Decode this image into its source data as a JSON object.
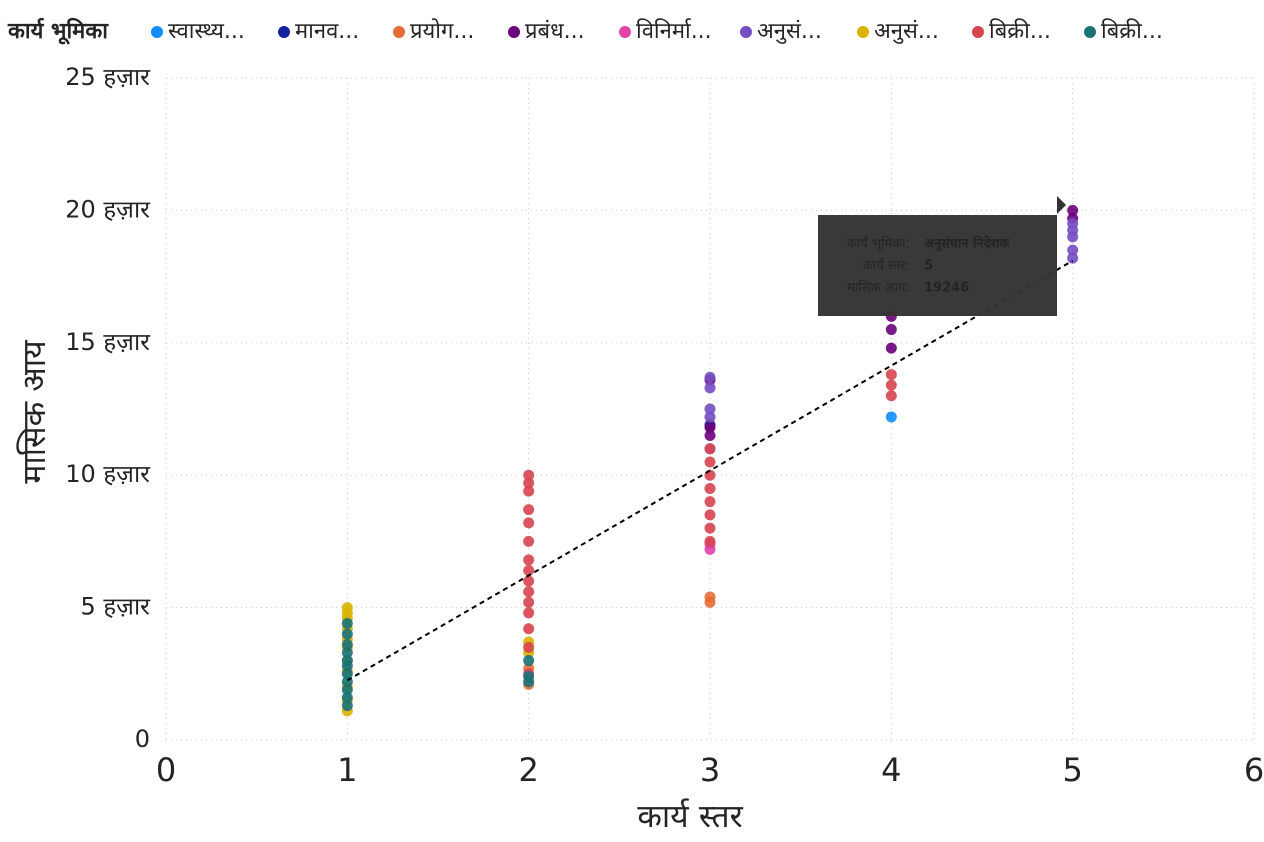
{
  "chart_data": {
    "type": "scatter",
    "legend_title": "कार्य भूमिका",
    "x_label": "कार्य स्तर",
    "y_label": "मासिक आय",
    "xlim": [
      0,
      6
    ],
    "xticks": [
      0,
      1,
      2,
      3,
      4,
      5,
      6
    ],
    "ylim": [
      0,
      25000
    ],
    "yticks": [
      0,
      {
        "value": 5000,
        "label": "5 हज़ार"
      },
      {
        "value": 10000,
        "label": "10 हज़ार"
      },
      {
        "value": 15000,
        "label": "15 हज़ार"
      },
      {
        "value": 20000,
        "label": "20 हज़ार"
      },
      {
        "value": 25000,
        "label": "25 हज़ार"
      }
    ],
    "grid": true,
    "legend_position": "top",
    "series": [
      {
        "name": "स्वास्थ्य...",
        "color": "#118dff",
        "x": [
          4
        ],
        "values": [
          12200
        ]
      },
      {
        "name": "मानव...",
        "color": "#12239e",
        "x": [
          3
        ],
        "values": [
          11900
        ]
      },
      {
        "name": "प्रयोग...",
        "color": "#e66c37",
        "x": [
          2,
          2,
          3,
          3
        ],
        "values": [
          2100,
          2700,
          5200,
          5400
        ]
      },
      {
        "name": "प्रबंध...",
        "color": "#6b007b",
        "x": [
          3,
          3,
          3,
          4,
          4,
          4,
          5,
          5
        ],
        "values": [
          11500,
          11800,
          13600,
          14800,
          15500,
          16000,
          19700,
          20000
        ]
      },
      {
        "name": "विनिर्मा...",
        "color": "#e044a7",
        "x": [
          3,
          3
        ],
        "values": [
          7200,
          7400
        ]
      },
      {
        "name": "अनुसं...",
        "color": "#744ec2",
        "x": [
          3,
          3,
          3,
          3,
          3,
          5,
          5,
          5,
          5,
          5
        ],
        "values": [
          11000,
          12200,
          12500,
          13300,
          13700,
          18200,
          18500,
          19000,
          19246,
          19500
        ]
      },
      {
        "name": "अनुसं...",
        "color": "#d9b300",
        "x": [
          1,
          1,
          1,
          1,
          1,
          1,
          1,
          1,
          1,
          1,
          1,
          2,
          2
        ],
        "values": [
          1100,
          1500,
          2000,
          2600,
          3000,
          3500,
          3800,
          4200,
          4600,
          4800,
          5000,
          3300,
          3700
        ]
      },
      {
        "name": "बिक्री...",
        "color": "#d64550",
        "x": [
          2,
          2,
          2,
          2,
          2,
          2,
          2,
          2,
          2,
          2,
          2,
          2,
          2,
          2,
          2,
          3,
          3,
          3,
          3,
          3,
          3,
          3,
          3,
          4,
          4,
          4
        ],
        "values": [
          2500,
          3500,
          4200,
          4800,
          5200,
          5600,
          6000,
          6400,
          6800,
          7500,
          8200,
          8700,
          9400,
          9700,
          10000,
          7500,
          8000,
          8500,
          9000,
          9500,
          10000,
          10500,
          11000,
          13000,
          13400,
          13800
        ]
      },
      {
        "name": "बिक्री...",
        "color": "#197278",
        "x": [
          1,
          1,
          1,
          1,
          1,
          1,
          1,
          1,
          1,
          1,
          1,
          2,
          2,
          2
        ],
        "values": [
          1300,
          1600,
          1900,
          2200,
          2500,
          2800,
          3000,
          3300,
          3600,
          4000,
          4400,
          2200,
          2400,
          3000
        ]
      }
    ],
    "trend_line": {
      "x": [
        1,
        5
      ],
      "values": [
        2250,
        18100
      ]
    },
    "tooltip": [
      {
        "label": "कार्य भूमिका:",
        "value": "अनुसंधान निदेशक"
      },
      {
        "label": "कार्य स्तर:",
        "value": "5"
      },
      {
        "label": "मासिक आय:",
        "value": "19246"
      }
    ]
  }
}
